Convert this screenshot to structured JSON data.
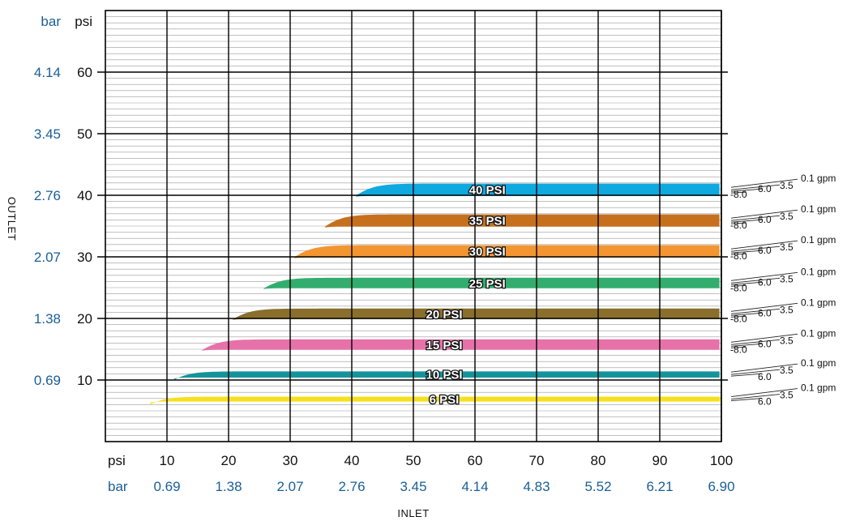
{
  "chart_data": {
    "type": "line",
    "xlabel": "INLET",
    "ylabel": "OUTLET",
    "x_unit_psi": "psi",
    "x_unit_bar": "bar",
    "y_unit_psi": "psi",
    "y_unit_bar": "bar",
    "xlim": [
      0,
      100
    ],
    "ylim": [
      0,
      70
    ],
    "x_ticks": [
      {
        "psi": "10",
        "bar": "0.69"
      },
      {
        "psi": "20",
        "bar": "1.38"
      },
      {
        "psi": "30",
        "bar": "2.07"
      },
      {
        "psi": "40",
        "bar": "2.76"
      },
      {
        "psi": "50",
        "bar": "3.45"
      },
      {
        "psi": "60",
        "bar": "4.14"
      },
      {
        "psi": "70",
        "bar": "4.83"
      },
      {
        "psi": "80",
        "bar": "5.52"
      },
      {
        "psi": "90",
        "bar": "6.21"
      },
      {
        "psi": "100",
        "bar": "6.90"
      }
    ],
    "y_ticks": [
      {
        "psi": "10",
        "bar": "0.69"
      },
      {
        "psi": "20",
        "bar": "1.38"
      },
      {
        "psi": "30",
        "bar": "2.07"
      },
      {
        "psi": "40",
        "bar": "2.76"
      },
      {
        "psi": "50",
        "bar": "3.45"
      },
      {
        "psi": "60",
        "bar": "4.14"
      }
    ],
    "grid": true,
    "series": [
      {
        "name": "6 PSI",
        "regulated": 6,
        "color": "#f5e020",
        "lo": 6.5,
        "hi": 7.3,
        "flow_labels": [
          "6.0",
          "3.5",
          "0.1 gpm"
        ]
      },
      {
        "name": "10 PSI",
        "regulated": 10,
        "color": "#13949c",
        "lo": 10.4,
        "hi": 11.4,
        "flow_labels": [
          "6.0",
          "3.5",
          "0.1 gpm"
        ]
      },
      {
        "name": "15 PSI",
        "regulated": 15,
        "color": "#e672a9",
        "lo": 14.9,
        "hi": 16.6,
        "flow_labels": [
          "-8.0",
          "6.0",
          "3.5",
          "0.1 gpm"
        ]
      },
      {
        "name": "20 PSI",
        "regulated": 20,
        "color": "#8a6e2c",
        "lo": 19.9,
        "hi": 21.6,
        "flow_labels": [
          "-8.0",
          "6.0",
          "3.5",
          "0.1 gpm"
        ]
      },
      {
        "name": "25 PSI",
        "regulated": 25,
        "color": "#33ad6d",
        "lo": 24.9,
        "hi": 26.6,
        "flow_labels": [
          "-8.0",
          "6.0",
          "3.5",
          "0.1 gpm"
        ]
      },
      {
        "name": "30 PSI",
        "regulated": 30,
        "color": "#f39631",
        "lo": 29.9,
        "hi": 31.9,
        "flow_labels": [
          "-8.0",
          "6.0",
          "3.5",
          "0.1 gpm"
        ]
      },
      {
        "name": "35 PSI",
        "regulated": 35,
        "color": "#c6701e",
        "lo": 34.9,
        "hi": 36.9,
        "flow_labels": [
          "-8.0",
          "6.0",
          "3.5",
          "0.1 gpm"
        ]
      },
      {
        "name": "40 PSI",
        "regulated": 40,
        "color": "#0fa9e0",
        "lo": 39.9,
        "hi": 41.9,
        "flow_labels": [
          "-8.0",
          "6.0",
          "3.5",
          "0.1 gpm"
        ]
      }
    ]
  }
}
